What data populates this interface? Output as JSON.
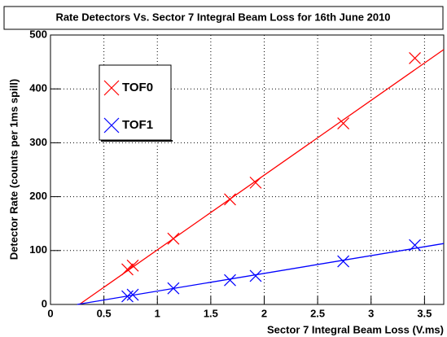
{
  "chart_data": {
    "type": "scatter",
    "title": "Rate Detectors Vs. Sector 7 Integral Beam Loss for 16th June 2010",
    "x_label": "Sector 7 Integral Beam Loss (V.ms)",
    "y_label": "Detector Rate (counts per 1ms spill)",
    "xlim": [
      0,
      3.68
    ],
    "ylim": [
      0,
      500
    ],
    "xticks": [
      0,
      0.5,
      1,
      1.5,
      2,
      2.5,
      3,
      3.5
    ],
    "yticks": [
      0,
      100,
      200,
      300,
      400,
      500
    ],
    "grid": true,
    "legend": "upper left",
    "series": [
      {
        "name": "TOF0",
        "color": "#ff0000",
        "x": [
          0.72,
          0.77,
          1.15,
          1.68,
          1.92,
          2.74,
          3.41
        ],
        "values": [
          65,
          72,
          122,
          195,
          226,
          336,
          457
        ]
      },
      {
        "name": "TOF1",
        "color": "#0000ff",
        "x": [
          0.72,
          0.77,
          1.15,
          1.68,
          1.92,
          2.74,
          3.41
        ],
        "values": [
          15,
          18,
          30,
          45,
          53,
          80,
          110
        ]
      }
    ],
    "fits": [
      {
        "color": "#ff0000",
        "x": [
          0.27,
          3.68
        ],
        "values": [
          0,
          473
        ]
      },
      {
        "color": "#0000ff",
        "x": [
          0.25,
          3.68
        ],
        "values": [
          0,
          113
        ]
      }
    ]
  }
}
